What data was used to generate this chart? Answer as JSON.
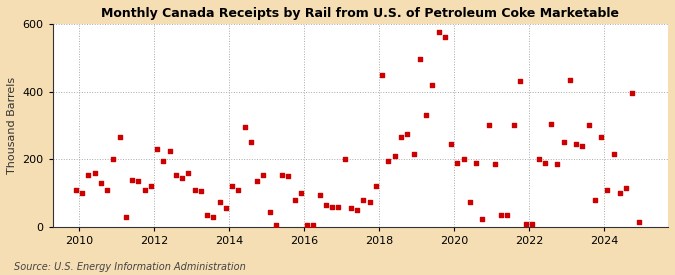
{
  "title": "Monthly Canada Receipts by Rail from U.S. of Petroleum Coke Marketable",
  "ylabel": "Thousand Barrels",
  "source": "Source: U.S. Energy Information Administration",
  "figure_bg": "#f5deb3",
  "plot_bg": "#ffffff",
  "dot_color": "#cc0000",
  "xlim_start": 2009.3,
  "xlim_end": 2025.7,
  "ylim": [
    0,
    600
  ],
  "yticks": [
    0,
    200,
    400,
    600
  ],
  "xticks": [
    2010,
    2012,
    2014,
    2016,
    2018,
    2020,
    2022,
    2024
  ],
  "data": [
    [
      2009.917,
      110
    ],
    [
      2010.083,
      100
    ],
    [
      2010.25,
      155
    ],
    [
      2010.417,
      160
    ],
    [
      2010.583,
      130
    ],
    [
      2010.75,
      110
    ],
    [
      2010.917,
      200
    ],
    [
      2011.083,
      265
    ],
    [
      2011.25,
      30
    ],
    [
      2011.417,
      140
    ],
    [
      2011.583,
      135
    ],
    [
      2011.75,
      110
    ],
    [
      2011.917,
      120
    ],
    [
      2012.083,
      230
    ],
    [
      2012.25,
      195
    ],
    [
      2012.417,
      225
    ],
    [
      2012.583,
      155
    ],
    [
      2012.75,
      145
    ],
    [
      2012.917,
      160
    ],
    [
      2013.083,
      110
    ],
    [
      2013.25,
      105
    ],
    [
      2013.417,
      35
    ],
    [
      2013.583,
      30
    ],
    [
      2013.75,
      75
    ],
    [
      2013.917,
      55
    ],
    [
      2014.083,
      120
    ],
    [
      2014.25,
      110
    ],
    [
      2014.417,
      295
    ],
    [
      2014.583,
      250
    ],
    [
      2014.75,
      135
    ],
    [
      2014.917,
      155
    ],
    [
      2015.083,
      45
    ],
    [
      2015.25,
      5
    ],
    [
      2015.417,
      155
    ],
    [
      2015.583,
      150
    ],
    [
      2015.75,
      80
    ],
    [
      2015.917,
      100
    ],
    [
      2016.083,
      5
    ],
    [
      2016.25,
      5
    ],
    [
      2016.417,
      95
    ],
    [
      2016.583,
      65
    ],
    [
      2016.75,
      60
    ],
    [
      2016.917,
      60
    ],
    [
      2017.083,
      200
    ],
    [
      2017.25,
      55
    ],
    [
      2017.417,
      50
    ],
    [
      2017.583,
      80
    ],
    [
      2017.75,
      75
    ],
    [
      2017.917,
      120
    ],
    [
      2018.083,
      450
    ],
    [
      2018.25,
      195
    ],
    [
      2018.417,
      210
    ],
    [
      2018.583,
      265
    ],
    [
      2018.75,
      275
    ],
    [
      2018.917,
      215
    ],
    [
      2019.083,
      495
    ],
    [
      2019.25,
      330
    ],
    [
      2019.417,
      420
    ],
    [
      2019.583,
      575
    ],
    [
      2019.75,
      560
    ],
    [
      2019.917,
      245
    ],
    [
      2020.083,
      190
    ],
    [
      2020.25,
      200
    ],
    [
      2020.417,
      75
    ],
    [
      2020.583,
      190
    ],
    [
      2020.75,
      25
    ],
    [
      2020.917,
      300
    ],
    [
      2021.083,
      185
    ],
    [
      2021.25,
      35
    ],
    [
      2021.417,
      35
    ],
    [
      2021.583,
      300
    ],
    [
      2021.75,
      430
    ],
    [
      2021.917,
      10
    ],
    [
      2022.083,
      10
    ],
    [
      2022.25,
      200
    ],
    [
      2022.417,
      190
    ],
    [
      2022.583,
      305
    ],
    [
      2022.75,
      185
    ],
    [
      2022.917,
      250
    ],
    [
      2023.083,
      435
    ],
    [
      2023.25,
      245
    ],
    [
      2023.417,
      240
    ],
    [
      2023.583,
      300
    ],
    [
      2023.75,
      80
    ],
    [
      2023.917,
      265
    ],
    [
      2024.083,
      110
    ],
    [
      2024.25,
      215
    ],
    [
      2024.417,
      100
    ],
    [
      2024.583,
      115
    ],
    [
      2024.75,
      395
    ],
    [
      2024.917,
      15
    ]
  ]
}
